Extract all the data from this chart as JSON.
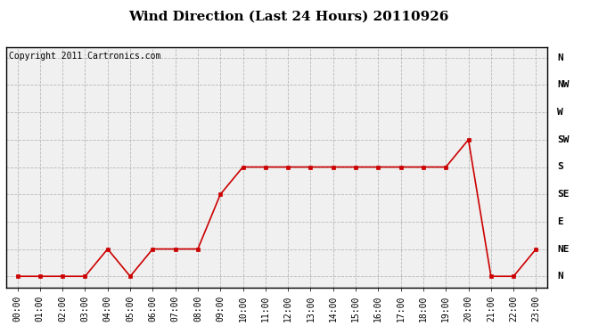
{
  "title": "Wind Direction (Last 24 Hours) 20110926",
  "copyright_text": "Copyright 2011 Cartronics.com",
  "hours": [
    "00:00",
    "01:00",
    "02:00",
    "03:00",
    "04:00",
    "05:00",
    "06:00",
    "07:00",
    "08:00",
    "09:00",
    "10:00",
    "11:00",
    "12:00",
    "13:00",
    "14:00",
    "15:00",
    "16:00",
    "17:00",
    "18:00",
    "19:00",
    "20:00",
    "21:00",
    "22:00",
    "23:00"
  ],
  "direction_labels": [
    "N",
    "NE",
    "E",
    "SE",
    "S",
    "SW",
    "W",
    "NW",
    "N"
  ],
  "direction_values": [
    0,
    1,
    2,
    3,
    4,
    5,
    6,
    7,
    8
  ],
  "wind_data": [
    0,
    0,
    0,
    0,
    1,
    0,
    1,
    1,
    1,
    3,
    4,
    4,
    4,
    4,
    4,
    4,
    4,
    4,
    4,
    4,
    5,
    0,
    0,
    1
  ],
  "line_color": "#cc0000",
  "marker": "s",
  "marker_size": 3,
  "plot_bg_color": "#f0f0f0",
  "fig_bg_color": "#ffffff",
  "grid_color": "#aaaaaa",
  "title_fontsize": 11,
  "ylabel_fontsize": 8,
  "xlabel_fontsize": 7,
  "copyright_fontsize": 7
}
